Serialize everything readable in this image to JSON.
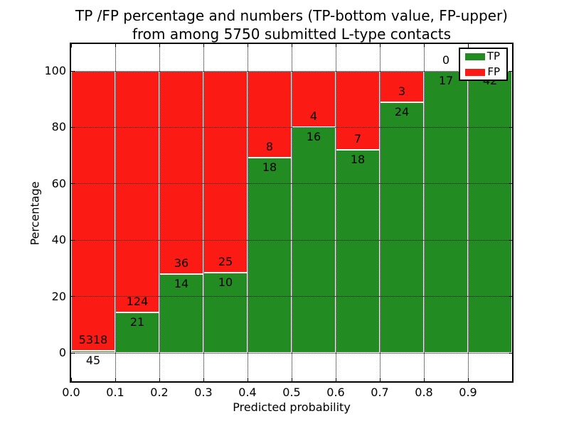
{
  "chart_data": {
    "type": "bar",
    "stacked": true,
    "normalized_to_percent": true,
    "title_line1": "TP /FP percentage and numbers (TP-bottom value, FP-upper)",
    "title_line2": "from among 5750 submitted L-type contacts",
    "total_submitted": 5750,
    "xlabel": "Predicted probability",
    "ylabel": "Percentage",
    "x_tick_labels": [
      "0.0",
      "0.1",
      "0.2",
      "0.3",
      "0.4",
      "0.5",
      "0.6",
      "0.7",
      "0.8",
      "0.9"
    ],
    "y_ticks": [
      0,
      20,
      40,
      60,
      80,
      100
    ],
    "ylim": [
      -10,
      110
    ],
    "xlim": [
      0.0,
      1.0
    ],
    "bin_width": 0.1,
    "grid": "dotted black, on",
    "categories": [
      "0.0-0.1",
      "0.1-0.2",
      "0.2-0.3",
      "0.3-0.4",
      "0.4-0.5",
      "0.5-0.6",
      "0.6-0.7",
      "0.7-0.8",
      "0.8-0.9",
      "0.9-1.0"
    ],
    "series": [
      {
        "name": "TP",
        "color": "#228b22",
        "values": [
          45,
          21,
          14,
          10,
          18,
          16,
          18,
          24,
          17,
          42
        ]
      },
      {
        "name": "FP",
        "color": "#fb1a14",
        "values": [
          5318,
          124,
          36,
          25,
          8,
          4,
          7,
          3,
          0,
          0
        ]
      }
    ],
    "tp_percent_per_bin": [
      0.84,
      14.48,
      28.0,
      28.57,
      69.23,
      80.0,
      72.0,
      88.89,
      100.0,
      100.0
    ],
    "legend": {
      "position": "upper right",
      "entries": [
        {
          "label": "TP",
          "color": "#228b22"
        },
        {
          "label": "FP",
          "color": "#fb1a14"
        }
      ]
    }
  }
}
